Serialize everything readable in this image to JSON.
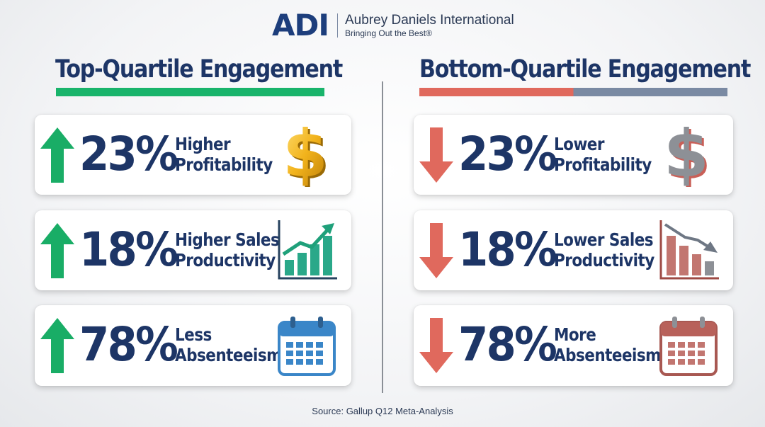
{
  "logo": {
    "mark": "ADI",
    "name": "Aubrey Daniels International",
    "tagline": "Bringing Out the Best®"
  },
  "left": {
    "title": "Top-Quartile Engagement",
    "accent_color": "#19b46b",
    "cards": [
      {
        "percent": "23%",
        "line1": "Higher",
        "line2": "Profitability",
        "icon": "gold-dollar-icon"
      },
      {
        "percent": "18%",
        "line1": "Higher Sales",
        "line2": "Productivity",
        "icon": "bar-chart-up-icon"
      },
      {
        "percent": "78%",
        "line1": "Less",
        "line2": "Absenteeism",
        "icon": "calendar-blue-icon"
      }
    ]
  },
  "right": {
    "title": "Bottom-Quartile Engagement",
    "accent_colors": [
      "#e0695d",
      "#7a8aa3"
    ],
    "cards": [
      {
        "percent": "23%",
        "line1": "Lower",
        "line2": "Profitability",
        "icon": "gray-dollar-icon"
      },
      {
        "percent": "18%",
        "line1": "Lower Sales",
        "line2": "Productivity",
        "icon": "bar-chart-down-icon"
      },
      {
        "percent": "78%",
        "line1": "More",
        "line2": "Absenteeism",
        "icon": "calendar-red-icon"
      }
    ]
  },
  "source": "Source: Gallup Q12 Meta-Analysis"
}
